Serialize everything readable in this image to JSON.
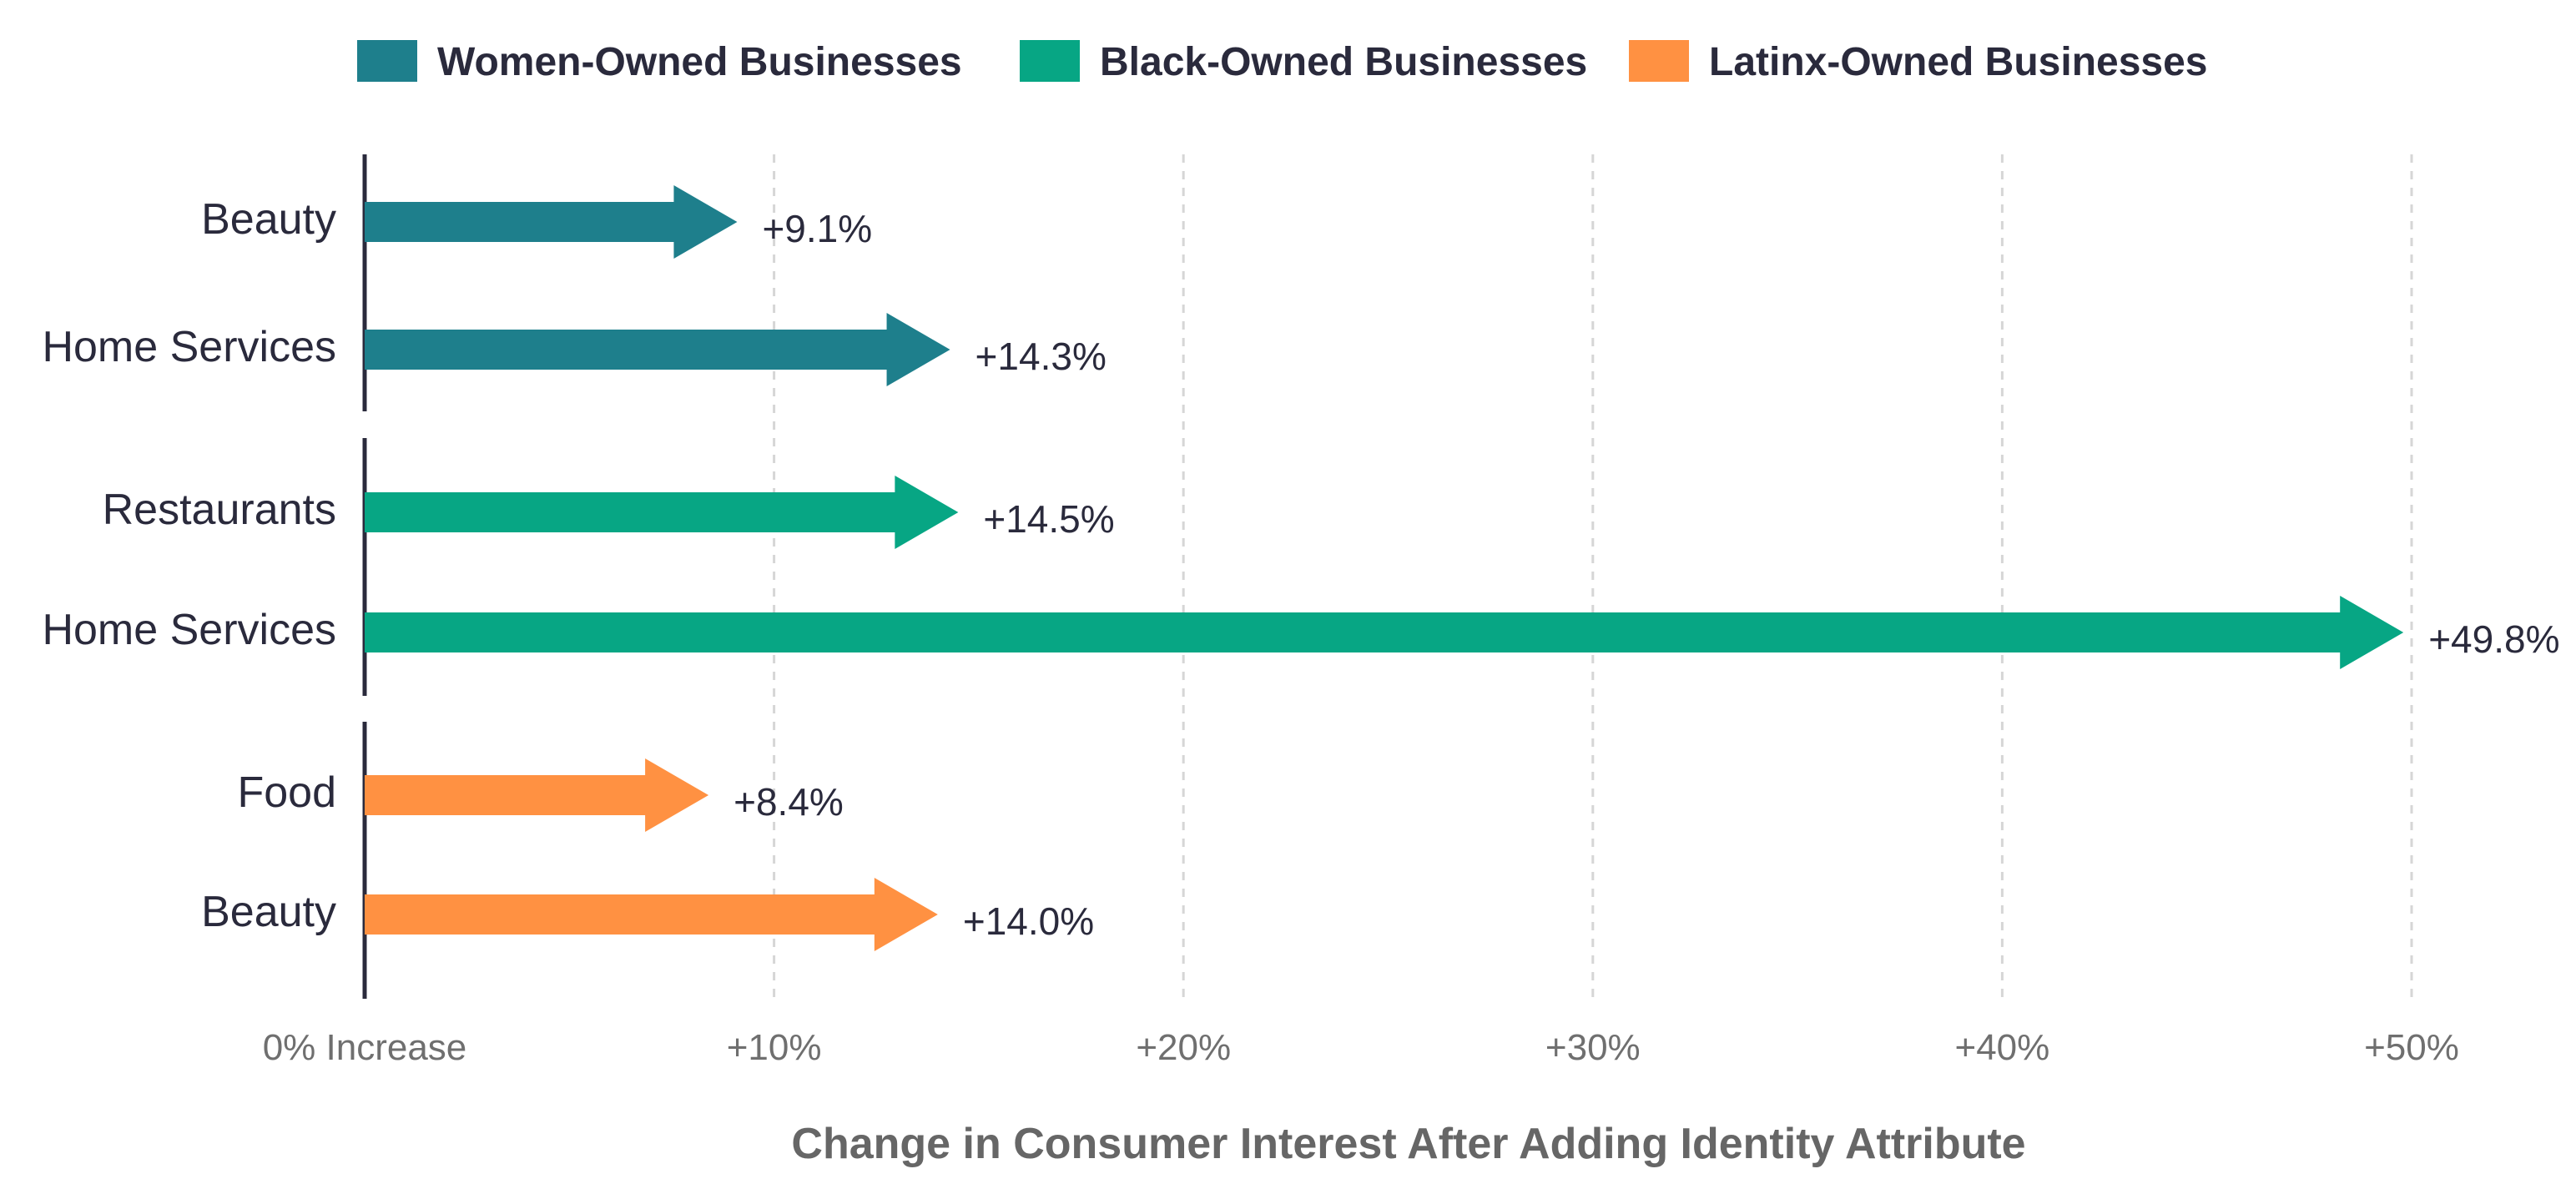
{
  "chart_data": {
    "type": "bar",
    "orientation": "horizontal",
    "title": "",
    "xlabel": "Change in Consumer Interest After Adding Identity Attribute",
    "ylabel": "",
    "xlim": [
      0,
      50
    ],
    "grid": true,
    "legend_position": "top",
    "x_ticks": [
      {
        "value": 0,
        "label": "0% Increase"
      },
      {
        "value": 10,
        "label": "+10%"
      },
      {
        "value": 20,
        "label": "+20%"
      },
      {
        "value": 30,
        "label": "+30%"
      },
      {
        "value": 40,
        "label": "+40%"
      },
      {
        "value": 50,
        "label": "+50%"
      }
    ],
    "series": [
      {
        "name": "Women-Owned Businesses",
        "color": "#1e7f8c",
        "categories": [
          "Beauty",
          "Home Services"
        ],
        "values": [
          9.1,
          14.3
        ],
        "labels": [
          "+9.1%",
          "+14.3%"
        ]
      },
      {
        "name": "Black-Owned Businesses",
        "color": "#07a684",
        "categories": [
          "Restaurants",
          "Home Services"
        ],
        "values": [
          14.5,
          49.8
        ],
        "labels": [
          "+14.5%",
          "+49.8%"
        ]
      },
      {
        "name": "Latinx-Owned Businesses",
        "color": "#ff9142",
        "categories": [
          "Food",
          "Beauty"
        ],
        "values": [
          8.4,
          14.0
        ],
        "labels": [
          "+8.4%",
          "+14.0%"
        ]
      }
    ]
  }
}
